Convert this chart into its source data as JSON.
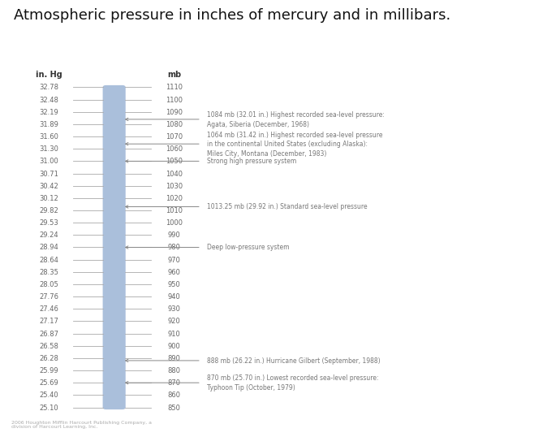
{
  "title": "Atmospheric pressure in inches of mercury and in millibars.",
  "title_fontsize": 13,
  "background_color": "#ede9e0",
  "outer_bg": "#ffffff",
  "bar_color": "#aabfdb",
  "col_inHg_header": "in. Hg",
  "col_mb_header": "mb",
  "tick_rows": [
    {
      "inHg": "32.78",
      "mb": "1110",
      "mb_val": 1110
    },
    {
      "inHg": "32.48",
      "mb": "1100",
      "mb_val": 1100
    },
    {
      "inHg": "32.19",
      "mb": "1090",
      "mb_val": 1090
    },
    {
      "inHg": "31.89",
      "mb": "1080",
      "mb_val": 1080
    },
    {
      "inHg": "31.60",
      "mb": "1070",
      "mb_val": 1070
    },
    {
      "inHg": "31.30",
      "mb": "1060",
      "mb_val": 1060
    },
    {
      "inHg": "31.00",
      "mb": "1050",
      "mb_val": 1050
    },
    {
      "inHg": "30.71",
      "mb": "1040",
      "mb_val": 1040
    },
    {
      "inHg": "30.42",
      "mb": "1030",
      "mb_val": 1030
    },
    {
      "inHg": "30.12",
      "mb": "1020",
      "mb_val": 1020
    },
    {
      "inHg": "29.82",
      "mb": "1010",
      "mb_val": 1010
    },
    {
      "inHg": "29.53",
      "mb": "1000",
      "mb_val": 1000
    },
    {
      "inHg": "29.24",
      "mb": "990",
      "mb_val": 990
    },
    {
      "inHg": "28.94",
      "mb": "980",
      "mb_val": 980
    },
    {
      "inHg": "28.64",
      "mb": "970",
      "mb_val": 970
    },
    {
      "inHg": "28.35",
      "mb": "960",
      "mb_val": 960
    },
    {
      "inHg": "28.05",
      "mb": "950",
      "mb_val": 950
    },
    {
      "inHg": "27.76",
      "mb": "940",
      "mb_val": 940
    },
    {
      "inHg": "27.46",
      "mb": "930",
      "mb_val": 930
    },
    {
      "inHg": "27.17",
      "mb": "920",
      "mb_val": 920
    },
    {
      "inHg": "26.87",
      "mb": "910",
      "mb_val": 910
    },
    {
      "inHg": "26.58",
      "mb": "900",
      "mb_val": 900
    },
    {
      "inHg": "26.28",
      "mb": "890",
      "mb_val": 890
    },
    {
      "inHg": "25.99",
      "mb": "880",
      "mb_val": 880
    },
    {
      "inHg": "25.69",
      "mb": "870",
      "mb_val": 870
    },
    {
      "inHg": "25.40",
      "mb": "860",
      "mb_val": 860
    },
    {
      "inHg": "25.10",
      "mb": "850",
      "mb_val": 850
    }
  ],
  "annotations": [
    {
      "mb_val": 1084,
      "text": "1084 mb (32.01 in.) Highest recorded sea-level pressure:\nAgata, Siberia (December, 1968)"
    },
    {
      "mb_val": 1064,
      "text": "1064 mb (31.42 in.) Highest recorded sea-level pressure\nin the continental United States (excluding Alaska):\nMiles City, Montana (December, 1983)"
    },
    {
      "mb_val": 1050,
      "text": "Strong high pressure system"
    },
    {
      "mb_val": 1013,
      "text": "1013.25 mb (29.92 in.) Standard sea-level pressure"
    },
    {
      "mb_val": 980,
      "text": "Deep low-pressure system"
    },
    {
      "mb_val": 888,
      "text": "888 mb (26.22 in.) Hurricane Gilbert (September, 1988)"
    },
    {
      "mb_val": 870,
      "text": "870 mb (25.70 in.) Lowest recorded sea-level pressure:\nTyphoon Tip (October, 1979)"
    }
  ],
  "mb_min": 850,
  "mb_max": 1110,
  "text_color": "#666666",
  "header_color": "#333333",
  "annotation_color": "#777777",
  "footer_text": "2006 Houghton Mifflin Harcourt Publishing Company, a\ndivision of Harcourt Learning, Inc."
}
